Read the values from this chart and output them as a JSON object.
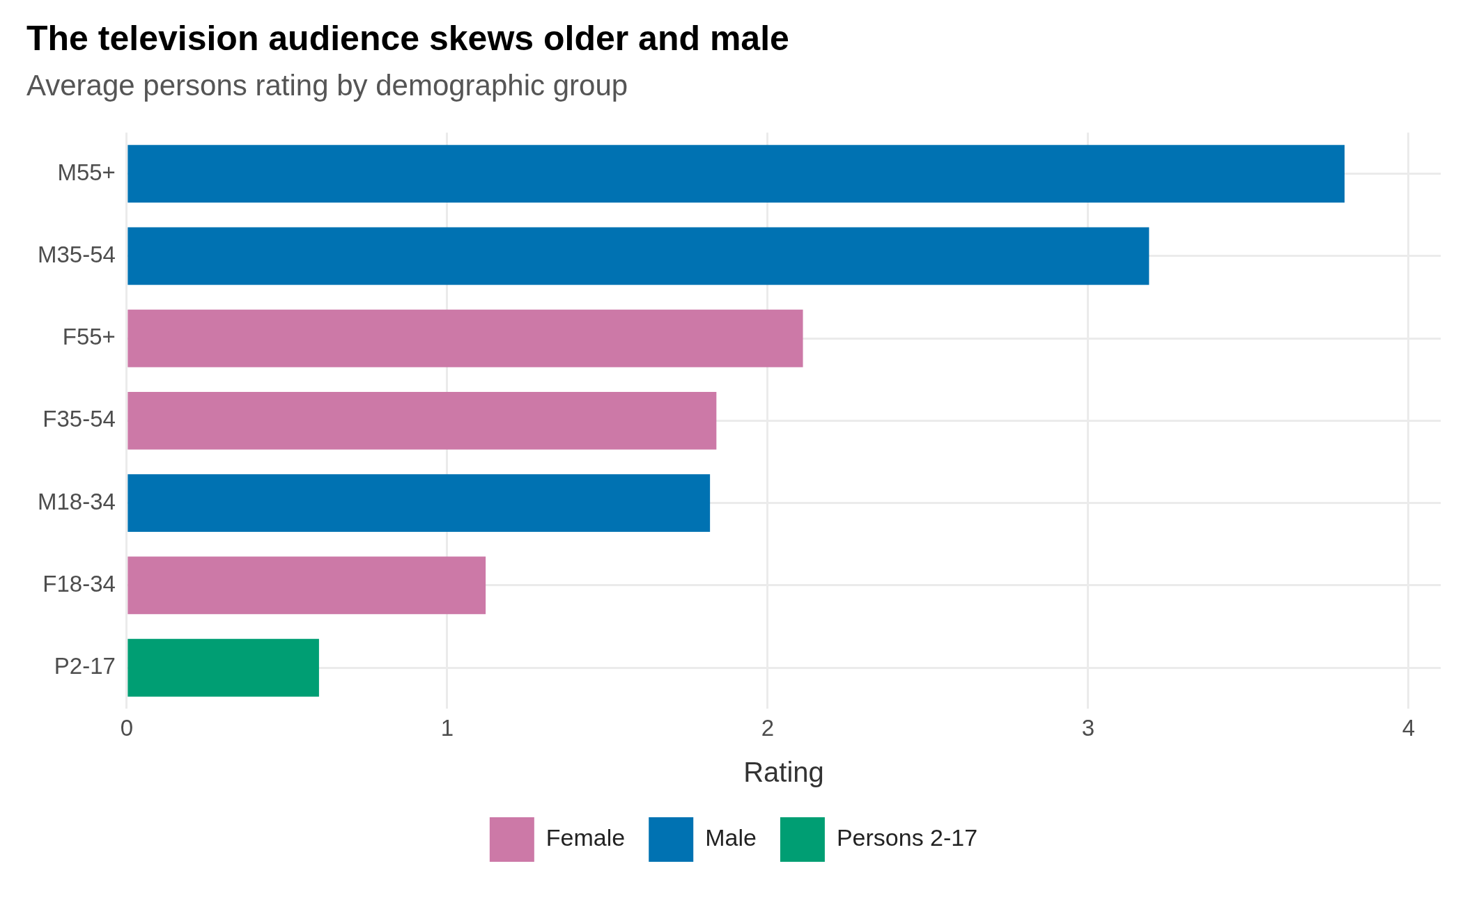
{
  "chart_data": {
    "type": "bar",
    "orientation": "horizontal",
    "title": "The television audience skews older and male",
    "subtitle": "Average persons rating by demographic group",
    "xlabel": "Rating",
    "categories": [
      "M55+",
      "M35-54",
      "F55+",
      "F35-54",
      "M18-34",
      "F18-34",
      "P2-17"
    ],
    "series": [
      {
        "name": "Female",
        "color": "#cc79a7",
        "values": [
          null,
          null,
          2.11,
          1.84,
          null,
          1.12,
          null
        ]
      },
      {
        "name": "Male",
        "color": "#0072b2",
        "values": [
          3.8,
          3.19,
          null,
          null,
          1.82,
          null,
          null
        ]
      },
      {
        "name": "Persons 2-17",
        "color": "#009e73",
        "values": [
          null,
          null,
          null,
          null,
          null,
          null,
          0.6
        ]
      }
    ],
    "xlim": [
      0,
      4.1
    ],
    "xticks": [
      0,
      1,
      2,
      3,
      4
    ],
    "grid": true,
    "legend": "bottom"
  }
}
